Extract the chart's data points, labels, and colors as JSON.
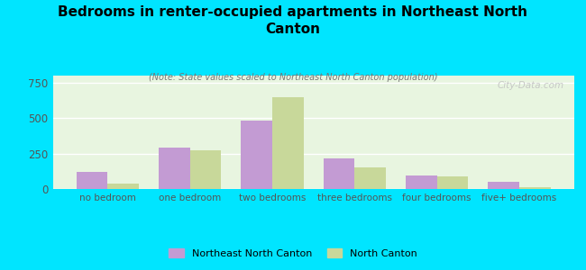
{
  "title": "Bedrooms in renter-occupied apartments in Northeast North\nCanton",
  "subtitle": "(Note: State values scaled to Northeast North Canton population)",
  "categories": [
    "no bedroom",
    "one bedroom",
    "two bedrooms",
    "three bedrooms",
    "four bedrooms",
    "five+ bedrooms"
  ],
  "northeast_nc": [
    120,
    295,
    480,
    215,
    95,
    50
  ],
  "north_canton": [
    40,
    270,
    650,
    150,
    90,
    10
  ],
  "color_northeast": "#c39bd3",
  "color_northcanton": "#c8d89a",
  "background_outer": "#00e5ff",
  "background_plot": "#e8f5e0",
  "ylim": [
    0,
    800
  ],
  "yticks": [
    0,
    250,
    500,
    750
  ],
  "bar_width": 0.38,
  "watermark": "City-Data.com",
  "legend_northeast": "Northeast North Canton",
  "legend_northcanton": "North Canton"
}
